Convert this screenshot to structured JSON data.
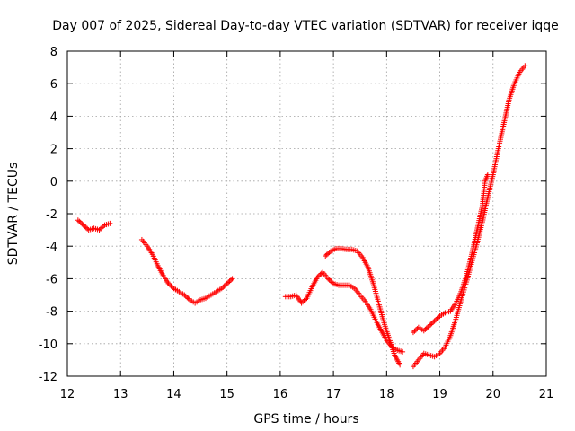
{
  "chart_data": {
    "type": "scatter",
    "title": "Day 007 of 2025, Sidereal Day-to-day VTEC variation (SDTVAR) for receiver iqqe",
    "xlabel": "GPS time / hours",
    "ylabel": "SDTVAR / TECUs",
    "xlim": [
      12,
      21
    ],
    "ylim": [
      -12,
      8
    ],
    "x_ticks": [
      "12",
      "13",
      "14",
      "15",
      "16",
      "17",
      "18",
      "19",
      "20",
      "21"
    ],
    "y_ticks": [
      "8",
      "6",
      "4",
      "2",
      "0",
      "-2",
      "-4",
      "-6",
      "-8",
      "-10",
      "-12"
    ],
    "grid": true,
    "marker": "+",
    "series": [
      {
        "name": "SDTVAR",
        "color": "#ff0000",
        "segments": [
          [
            [
              12.2,
              -2.4
            ],
            [
              12.3,
              -2.7
            ],
            [
              12.4,
              -3.0
            ],
            [
              12.5,
              -2.9
            ],
            [
              12.6,
              -3.0
            ],
            [
              12.7,
              -2.7
            ],
            [
              12.8,
              -2.6
            ]
          ],
          [
            [
              13.4,
              -3.6
            ],
            [
              13.5,
              -4.0
            ],
            [
              13.6,
              -4.5
            ],
            [
              13.7,
              -5.2
            ],
            [
              13.8,
              -5.8
            ],
            [
              13.9,
              -6.3
            ],
            [
              14.0,
              -6.6
            ],
            [
              14.1,
              -6.8
            ],
            [
              14.2,
              -7.0
            ],
            [
              14.3,
              -7.3
            ],
            [
              14.4,
              -7.5
            ],
            [
              14.5,
              -7.3
            ],
            [
              14.6,
              -7.2
            ],
            [
              14.7,
              -7.0
            ],
            [
              14.8,
              -6.8
            ],
            [
              14.9,
              -6.6
            ],
            [
              15.0,
              -6.3
            ],
            [
              15.1,
              -6.0
            ]
          ],
          [
            [
              16.1,
              -7.1
            ],
            [
              16.2,
              -7.1
            ],
            [
              16.3,
              -7.0
            ],
            [
              16.4,
              -7.5
            ],
            [
              16.5,
              -7.2
            ],
            [
              16.6,
              -6.5
            ],
            [
              16.7,
              -5.9
            ],
            [
              16.8,
              -5.6
            ],
            [
              16.9,
              -6.0
            ],
            [
              17.0,
              -6.3
            ],
            [
              17.1,
              -6.4
            ],
            [
              17.2,
              -6.4
            ],
            [
              17.3,
              -6.4
            ],
            [
              17.4,
              -6.6
            ],
            [
              17.5,
              -7.0
            ],
            [
              17.6,
              -7.4
            ],
            [
              17.7,
              -7.9
            ],
            [
              17.8,
              -8.6
            ],
            [
              17.9,
              -9.2
            ],
            [
              18.0,
              -9.8
            ],
            [
              18.1,
              -10.2
            ],
            [
              18.2,
              -10.4
            ],
            [
              18.3,
              -10.5
            ]
          ],
          [
            [
              16.85,
              -4.6
            ],
            [
              16.95,
              -4.3
            ],
            [
              17.05,
              -4.15
            ],
            [
              17.15,
              -4.15
            ],
            [
              17.25,
              -4.2
            ],
            [
              17.35,
              -4.2
            ],
            [
              17.45,
              -4.3
            ],
            [
              17.55,
              -4.7
            ],
            [
              17.65,
              -5.3
            ],
            [
              17.75,
              -6.3
            ],
            [
              17.85,
              -7.5
            ],
            [
              17.95,
              -8.7
            ],
            [
              18.05,
              -9.7
            ],
            [
              18.15,
              -10.7
            ],
            [
              18.25,
              -11.3
            ]
          ],
          [
            [
              18.5,
              -9.3
            ],
            [
              18.6,
              -9.0
            ],
            [
              18.7,
              -9.2
            ],
            [
              18.8,
              -8.9
            ],
            [
              18.9,
              -8.6
            ],
            [
              19.0,
              -8.3
            ],
            [
              19.1,
              -8.1
            ],
            [
              19.2,
              -8.0
            ],
            [
              19.3,
              -7.5
            ],
            [
              19.4,
              -6.8
            ],
            [
              19.5,
              -5.8
            ],
            [
              19.6,
              -4.5
            ],
            [
              19.7,
              -3.0
            ],
            [
              19.8,
              -1.5
            ],
            [
              19.85,
              0.0
            ],
            [
              19.9,
              0.4
            ]
          ],
          [
            [
              18.5,
              -11.4
            ],
            [
              18.6,
              -11.0
            ],
            [
              18.7,
              -10.6
            ],
            [
              18.8,
              -10.7
            ],
            [
              18.9,
              -10.8
            ],
            [
              19.0,
              -10.6
            ],
            [
              19.1,
              -10.2
            ],
            [
              19.2,
              -9.5
            ],
            [
              19.3,
              -8.5
            ],
            [
              19.4,
              -7.3
            ],
            [
              19.5,
              -6.2
            ],
            [
              19.6,
              -5.0
            ],
            [
              19.7,
              -3.8
            ],
            [
              19.8,
              -2.5
            ],
            [
              19.9,
              -1.0
            ],
            [
              20.0,
              0.4
            ],
            [
              20.1,
              2.0
            ],
            [
              20.2,
              3.5
            ],
            [
              20.3,
              5.0
            ],
            [
              20.4,
              6.0
            ],
            [
              20.5,
              6.7
            ],
            [
              20.6,
              7.1
            ]
          ]
        ]
      }
    ]
  }
}
